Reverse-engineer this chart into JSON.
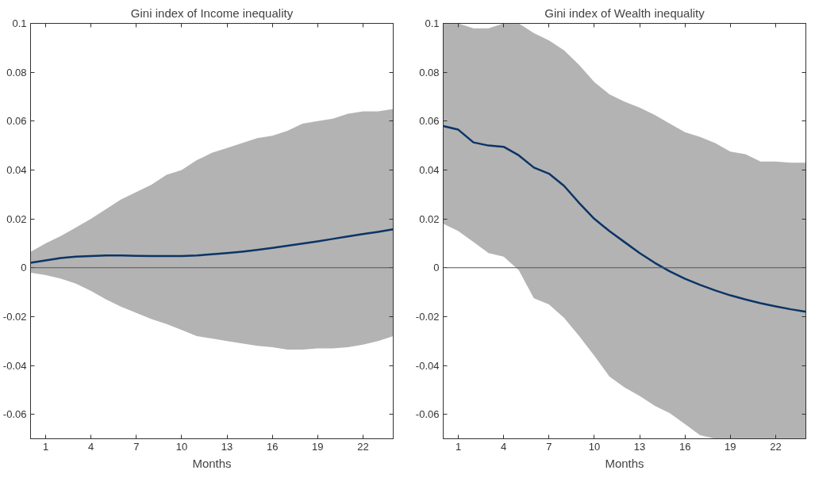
{
  "chart_data": [
    {
      "type": "line",
      "title": "Gini index of Income inequality",
      "xlabel": "Months",
      "x": [
        0,
        1,
        2,
        3,
        4,
        5,
        6,
        7,
        8,
        9,
        10,
        11,
        12,
        13,
        14,
        15,
        16,
        17,
        18,
        19,
        20,
        21,
        22,
        23,
        24
      ],
      "series": [
        {
          "color": "#0b3466",
          "values": [
            0.002,
            0.003,
            0.004,
            0.0045,
            0.0048,
            0.005,
            0.005,
            0.0049,
            0.0048,
            0.0048,
            0.0048,
            0.005,
            0.0055,
            0.006,
            0.0066,
            0.0073,
            0.0081,
            0.009,
            0.0099,
            0.0108,
            0.0118,
            0.0128,
            0.0138,
            0.0147,
            0.0157
          ],
          "upper": [
            0.0065,
            0.01,
            0.013,
            0.0165,
            0.02,
            0.024,
            0.028,
            0.031,
            0.034,
            0.038,
            0.04,
            0.044,
            0.047,
            0.049,
            0.051,
            0.053,
            0.054,
            0.056,
            0.059,
            0.06,
            0.061,
            0.063,
            0.064,
            0.064,
            0.065
          ],
          "lower": [
            -0.002,
            -0.003,
            -0.0045,
            -0.0065,
            -0.0095,
            -0.013,
            -0.016,
            -0.0185,
            -0.021,
            -0.023,
            -0.0255,
            -0.028,
            -0.029,
            -0.03,
            -0.031,
            -0.032,
            -0.0325,
            -0.0335,
            -0.0335,
            -0.033,
            -0.033,
            -0.0325,
            -0.0315,
            -0.03,
            -0.028
          ]
        }
      ],
      "xlim": [
        0,
        24
      ],
      "xticks": [
        1,
        4,
        7,
        10,
        13,
        16,
        19,
        22
      ],
      "ylim": [
        -0.07,
        0.1
      ],
      "yticks": [
        {
          "value": -0.06,
          "label": "-0.06"
        },
        {
          "value": -0.04,
          "label": "-0.04"
        },
        {
          "value": -0.02,
          "label": "-0.02"
        },
        0,
        {
          "value": 0.02,
          "label": "0.02"
        },
        {
          "value": 0.04,
          "label": "0.04"
        },
        {
          "value": 0.06,
          "label": "0.06"
        },
        {
          "value": 0.08,
          "label": "0.08"
        },
        {
          "value": 0.1,
          "label": "0.1"
        }
      ],
      "ref_lines": [
        {
          "axis": "y",
          "value": 0,
          "color": "#555555"
        }
      ],
      "grid": false,
      "marker": "none",
      "line_style": "solid"
    },
    {
      "type": "line",
      "title": "Gini index of Wealth inequality",
      "xlabel": "Months",
      "x": [
        0,
        1,
        2,
        3,
        4,
        5,
        6,
        7,
        8,
        9,
        10,
        11,
        12,
        13,
        14,
        15,
        16,
        17,
        18,
        19,
        20,
        21,
        22,
        23,
        24
      ],
      "series": [
        {
          "color": "#0b3466",
          "values": [
            0.058,
            0.0565,
            0.0513,
            0.05,
            0.0495,
            0.046,
            0.041,
            0.0385,
            0.0335,
            0.0265,
            0.02,
            0.015,
            0.0105,
            0.006,
            0.002,
            -0.0015,
            -0.0045,
            -0.007,
            -0.0093,
            -0.0113,
            -0.013,
            -0.0145,
            -0.0158,
            -0.017,
            -0.018
          ],
          "upper": [
            0.1,
            0.1,
            0.098,
            0.098,
            0.1,
            0.1,
            0.096,
            0.093,
            0.089,
            0.083,
            0.076,
            0.071,
            0.068,
            0.0655,
            0.0625,
            0.059,
            0.0555,
            0.0535,
            0.051,
            0.0475,
            0.0465,
            0.0435,
            0.0435,
            0.043,
            0.043
          ],
          "lower": [
            0.018,
            0.015,
            0.0105,
            0.006,
            0.0045,
            -0.001,
            -0.0125,
            -0.015,
            -0.0205,
            -0.028,
            -0.036,
            -0.0445,
            -0.049,
            -0.0525,
            -0.0565,
            -0.0595,
            -0.064,
            -0.0685,
            -0.07,
            -0.07,
            -0.07,
            -0.07,
            -0.07,
            -0.07,
            -0.07
          ]
        }
      ],
      "xlim": [
        0,
        24
      ],
      "xticks": [
        1,
        4,
        7,
        10,
        13,
        16,
        19,
        22
      ],
      "ylim": [
        -0.07,
        0.1
      ],
      "yticks": [
        {
          "value": -0.06,
          "label": "-0.06"
        },
        {
          "value": -0.04,
          "label": "-0.04"
        },
        {
          "value": -0.02,
          "label": "-0.02"
        },
        0,
        {
          "value": 0.02,
          "label": "0.02"
        },
        {
          "value": 0.04,
          "label": "0.04"
        },
        {
          "value": 0.06,
          "label": "0.06"
        },
        {
          "value": 0.08,
          "label": "0.08"
        },
        {
          "value": 0.1,
          "label": "0.1"
        }
      ],
      "ref_lines": [
        {
          "axis": "y",
          "value": 0,
          "color": "#555555"
        }
      ],
      "grid": false,
      "marker": "none",
      "line_style": "solid"
    }
  ]
}
